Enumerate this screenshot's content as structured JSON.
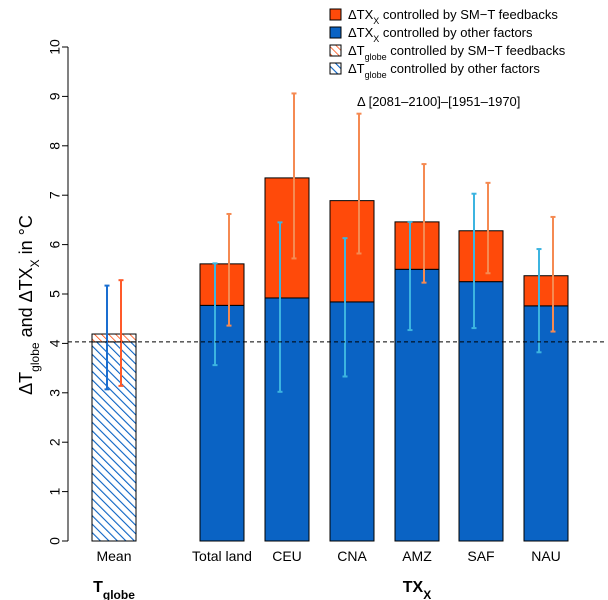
{
  "chart_data": {
    "type": "bar",
    "stacked": true,
    "ylabel": "ΔTglobe and ΔTXx in °C",
    "ylim": [
      0,
      10
    ],
    "yticks": [
      0,
      1,
      2,
      3,
      4,
      5,
      6,
      7,
      8,
      9,
      10
    ],
    "grid": false,
    "annotation": "Δ [2081–2100]–[1951–1970]",
    "reference_line": 4.03,
    "categories": [
      "Mean",
      "Total land",
      "CEU",
      "CNA",
      "AMZ",
      "SAF",
      "NAU"
    ],
    "groups": [
      {
        "label_main": "T",
        "label_sub": "globe",
        "categories": [
          "Mean"
        ]
      },
      {
        "label_main": "TX",
        "label_sub": "X",
        "categories": [
          "Total land",
          "CEU",
          "CNA",
          "AMZ",
          "SAF",
          "NAU"
        ]
      }
    ],
    "series": [
      {
        "name": "ΔTXX controlled by other factors",
        "color": "#0a63c4",
        "pattern": "solid",
        "values": [
          null,
          4.77,
          4.92,
          4.84,
          5.5,
          5.25,
          4.76
        ]
      },
      {
        "name": "ΔTXX controlled by SM–T feedbacks",
        "color": "#ff4a0a",
        "pattern": "solid",
        "values": [
          null,
          0.84,
          2.43,
          2.05,
          0.96,
          1.03,
          0.61
        ]
      },
      {
        "name": "ΔTglobe controlled by other factors",
        "color": "#0a63c4",
        "pattern": "hatch",
        "values": [
          4.03,
          null,
          null,
          null,
          null,
          null,
          null
        ]
      },
      {
        "name": "ΔTglobe controlled by SM–T feedbacks",
        "color": "#ff4a0a",
        "pattern": "hatch",
        "values": [
          0.16,
          null,
          null,
          null,
          null,
          null,
          null
        ]
      }
    ],
    "error_bars": [
      {
        "category": "Mean",
        "blue": [
          3.07,
          5.17
        ],
        "red": [
          3.14,
          5.28
        ]
      },
      {
        "category": "Total land",
        "blue": [
          3.56,
          5.62
        ],
        "red": [
          4.36,
          6.62
        ]
      },
      {
        "category": "CEU",
        "blue": [
          3.02,
          6.45
        ],
        "red": [
          5.72,
          9.06
        ]
      },
      {
        "category": "CNA",
        "blue": [
          3.33,
          6.13
        ],
        "red": [
          5.82,
          8.65
        ]
      },
      {
        "category": "AMZ",
        "blue": [
          4.27,
          6.46
        ],
        "red": [
          5.23,
          7.63
        ]
      },
      {
        "category": "SAF",
        "blue": [
          4.31,
          7.03
        ],
        "red": [
          5.42,
          7.25
        ]
      },
      {
        "category": "NAU",
        "blue": [
          3.82,
          5.91
        ],
        "red": [
          4.24,
          6.56
        ]
      }
    ],
    "legend": {
      "position": "top-right",
      "entries": [
        {
          "main": "ΔTX",
          "sub": "X",
          "rest": " controlled by SM−T feedbacks",
          "color": "#ff4a0a",
          "pattern": "solid"
        },
        {
          "main": "ΔTX",
          "sub": "X",
          "rest": " controlled by other factors",
          "color": "#0a63c4",
          "pattern": "solid"
        },
        {
          "main": "ΔT",
          "sub": "globe",
          "rest": " controlled by SM−T feedbacks",
          "color": "#ff4a0a",
          "pattern": "hatch"
        },
        {
          "main": "ΔT",
          "sub": "globe",
          "rest": " controlled by other factors",
          "color": "#0a63c4",
          "pattern": "hatch"
        }
      ]
    },
    "colors": {
      "blue_bar": "#0a63c4",
      "red_bar": "#ff4a0a",
      "blue_err": "#3cb4e0",
      "red_err": "#f58a52",
      "mean_blue_err": "#1a6ed0",
      "mean_red_err": "#ff5a2a"
    }
  }
}
